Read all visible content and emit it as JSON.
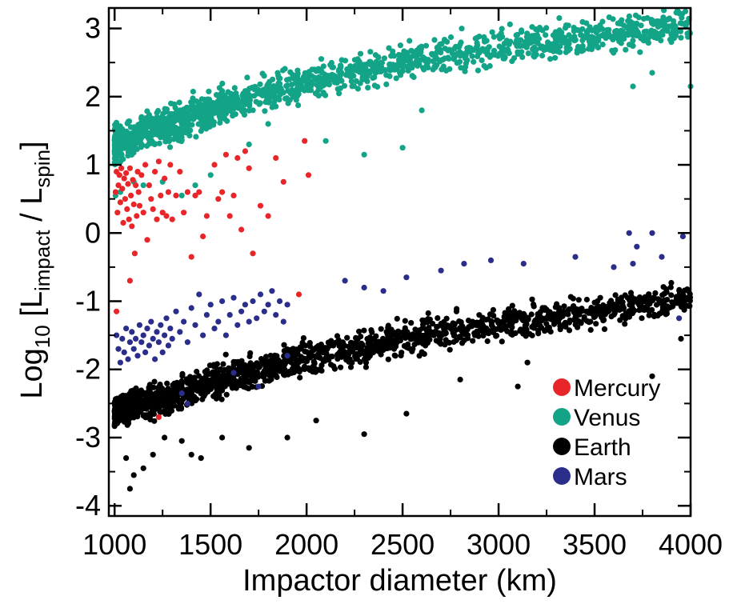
{
  "chart_data": {
    "type": "scatter",
    "xlabel": "Impactor diameter (km)",
    "ylabel": {
      "prefix": "Log",
      "prefix_sub": "10",
      "open": " [L",
      "num_sub": "impact",
      "mid": " / L",
      "den_sub": "spin",
      "close": "]"
    },
    "xlim": [
      970,
      4000
    ],
    "ylim": [
      -4.15,
      3.3
    ],
    "x_ticks": [
      1000,
      1500,
      2000,
      2500,
      3000,
      3500,
      4000
    ],
    "y_ticks": [
      -4,
      -3,
      -2,
      -1,
      0,
      1,
      2,
      3
    ],
    "x_tick_labels": [
      "1000",
      "1500",
      "2000",
      "2500",
      "3000",
      "3500",
      "4000"
    ],
    "y_tick_labels": [
      "-4",
      "-3",
      "-2",
      "-1",
      "0",
      "1",
      "2",
      "3"
    ],
    "legend_position": "lower-right",
    "series": [
      {
        "name": "Mercury",
        "color": "#e8262a",
        "trend": [
          [
            1000,
            0.75
          ],
          [
            1300,
            0.55
          ],
          [
            1700,
            0.55
          ],
          [
            2000,
            0.9
          ]
        ],
        "spread": 0.3,
        "points": [
          [
            1005,
            0.6
          ],
          [
            1010,
            0.9
          ],
          [
            1015,
            0.3
          ],
          [
            1020,
            0.7
          ],
          [
            1025,
            0.85
          ],
          [
            1030,
            0.45
          ],
          [
            1035,
            0.95
          ],
          [
            1040,
            0.65
          ],
          [
            1045,
            0.15
          ],
          [
            1050,
            0.8
          ],
          [
            1055,
            0.5
          ],
          [
            1060,
            0.88
          ],
          [
            1065,
            0.35
          ],
          [
            1070,
            0.72
          ],
          [
            1075,
            0.2
          ],
          [
            1080,
            0.95
          ],
          [
            1085,
            0.55
          ],
          [
            1090,
            0.1
          ],
          [
            1095,
            0.78
          ],
          [
            1100,
            0.42
          ],
          [
            1105,
            -0.3
          ],
          [
            1110,
            0.7
          ],
          [
            1115,
            0.25
          ],
          [
            1120,
            0.9
          ],
          [
            1125,
            0.6
          ],
          [
            1130,
            0.4
          ],
          [
            1140,
            0.85
          ],
          [
            1150,
            0.3
          ],
          [
            1160,
            1.0
          ],
          [
            1170,
            -0.1
          ],
          [
            1180,
            0.7
          ],
          [
            1190,
            0.5
          ],
          [
            1200,
            0.35
          ],
          [
            1210,
            0.9
          ],
          [
            1220,
            0.2
          ],
          [
            1230,
            1.05
          ],
          [
            1240,
            0.55
          ],
          [
            1250,
            0.3
          ],
          [
            1260,
            0.8
          ],
          [
            1270,
            0.25
          ],
          [
            1280,
            0.6
          ],
          [
            1290,
            1.0
          ],
          [
            1300,
            0.2
          ],
          [
            1320,
            0.55
          ],
          [
            1340,
            0.9
          ],
          [
            1360,
            0.3
          ],
          [
            1380,
            0.6
          ],
          [
            1400,
            -0.35
          ],
          [
            1420,
            0.55
          ],
          [
            1440,
            0.6
          ],
          [
            1460,
            -0.05
          ],
          [
            1480,
            0.25
          ],
          [
            1520,
            1.0
          ],
          [
            1540,
            0.5
          ],
          [
            1560,
            0.6
          ],
          [
            1580,
            1.15
          ],
          [
            1600,
            0.25
          ],
          [
            1620,
            0.55
          ],
          [
            1640,
            1.1
          ],
          [
            1660,
            0.05
          ],
          [
            1680,
            1.2
          ],
          [
            1700,
            0.95
          ],
          [
            1720,
            -0.3
          ],
          [
            1760,
            0.4
          ],
          [
            1800,
            0.25
          ],
          [
            1840,
            1.1
          ],
          [
            1880,
            0.75
          ],
          [
            1960,
            -0.9
          ],
          [
            1990,
            1.35
          ],
          [
            2010,
            0.85
          ],
          [
            1010,
            -1.15
          ],
          [
            1230,
            -2.7
          ],
          [
            1080,
            -0.7
          ]
        ]
      },
      {
        "name": "Venus",
        "color": "#13a488",
        "trend": [
          [
            1000,
            1.3
          ],
          [
            1300,
            1.6
          ],
          [
            1600,
            1.9
          ],
          [
            2000,
            2.2
          ],
          [
            2500,
            2.5
          ],
          [
            3000,
            2.75
          ],
          [
            3500,
            2.9
          ],
          [
            4000,
            3.05
          ]
        ],
        "spread": 0.55,
        "count": 1500,
        "extra_points": [
          [
            1005,
            0.55
          ],
          [
            1030,
            0.6
          ],
          [
            1100,
            0.75
          ],
          [
            1150,
            0.7
          ],
          [
            1250,
            0.75
          ],
          [
            1350,
            0.55
          ],
          [
            1420,
            0.7
          ],
          [
            1500,
            0.85
          ],
          [
            1700,
            1.3
          ],
          [
            1800,
            1.6
          ],
          [
            2100,
            1.35
          ],
          [
            2300,
            1.15
          ],
          [
            2500,
            1.25
          ],
          [
            2600,
            1.8
          ],
          [
            3700,
            2.15
          ],
          [
            3800,
            2.35
          ],
          [
            4000,
            2.15
          ],
          [
            3900,
            2.8
          ]
        ]
      },
      {
        "name": "Earth",
        "color": "#000000",
        "trend": [
          [
            1000,
            -2.6
          ],
          [
            1300,
            -2.4
          ],
          [
            1600,
            -2.1
          ],
          [
            2000,
            -1.85
          ],
          [
            2500,
            -1.55
          ],
          [
            3000,
            -1.35
          ],
          [
            3500,
            -1.15
          ],
          [
            4000,
            -0.95
          ]
        ],
        "spread": 0.5,
        "count": 1700,
        "extra_points": [
          [
            1060,
            -3.3
          ],
          [
            1080,
            -3.75
          ],
          [
            1100,
            -3.55
          ],
          [
            1150,
            -3.45
          ],
          [
            1200,
            -3.25
          ],
          [
            1260,
            -3.0
          ],
          [
            1350,
            -3.05
          ],
          [
            1400,
            -3.25
          ],
          [
            1450,
            -3.3
          ],
          [
            1560,
            -3.0
          ],
          [
            1700,
            -3.15
          ],
          [
            1900,
            -3.0
          ],
          [
            2050,
            -2.75
          ],
          [
            2300,
            -2.95
          ],
          [
            2520,
            -2.65
          ],
          [
            2800,
            -2.15
          ],
          [
            3100,
            -2.25
          ],
          [
            3150,
            -1.9
          ],
          [
            3800,
            -2.1
          ],
          [
            3950,
            -1.55
          ]
        ]
      },
      {
        "name": "Mars",
        "color": "#2a2e8a",
        "trend": [
          [
            1000,
            -1.6
          ],
          [
            1400,
            -1.35
          ],
          [
            2000,
            -1.05
          ],
          [
            3000,
            -0.6
          ],
          [
            4000,
            -0.2
          ]
        ],
        "spread": 0.3,
        "points": [
          [
            1010,
            -1.5
          ],
          [
            1020,
            -1.7
          ],
          [
            1030,
            -1.9
          ],
          [
            1040,
            -1.55
          ],
          [
            1050,
            -1.75
          ],
          [
            1060,
            -1.4
          ],
          [
            1070,
            -1.85
          ],
          [
            1080,
            -1.6
          ],
          [
            1090,
            -1.45
          ],
          [
            1100,
            -1.7
          ],
          [
            1110,
            -1.55
          ],
          [
            1120,
            -1.8
          ],
          [
            1130,
            -1.35
          ],
          [
            1140,
            -1.6
          ],
          [
            1150,
            -1.5
          ],
          [
            1160,
            -1.75
          ],
          [
            1170,
            -1.4
          ],
          [
            1180,
            -1.65
          ],
          [
            1190,
            -1.3
          ],
          [
            1200,
            -1.55
          ],
          [
            1210,
            -1.85
          ],
          [
            1220,
            -1.45
          ],
          [
            1230,
            -1.6
          ],
          [
            1240,
            -1.35
          ],
          [
            1250,
            -1.75
          ],
          [
            1260,
            -1.5
          ],
          [
            1270,
            -1.25
          ],
          [
            1280,
            -1.65
          ],
          [
            1290,
            -1.4
          ],
          [
            1300,
            -1.55
          ],
          [
            1320,
            -1.15
          ],
          [
            1340,
            -1.45
          ],
          [
            1360,
            -1.3
          ],
          [
            1380,
            -1.6
          ],
          [
            1400,
            -1.1
          ],
          [
            1420,
            -1.35
          ],
          [
            1440,
            -0.9
          ],
          [
            1460,
            -1.5
          ],
          [
            1480,
            -1.2
          ],
          [
            1500,
            -1.05
          ],
          [
            1520,
            -1.4
          ],
          [
            1540,
            -1.3
          ],
          [
            1560,
            -1.0
          ],
          [
            1580,
            -1.5
          ],
          [
            1600,
            -1.2
          ],
          [
            1620,
            -0.95
          ],
          [
            1640,
            -1.35
          ],
          [
            1660,
            -1.15
          ],
          [
            1680,
            -1.05
          ],
          [
            1700,
            -1.3
          ],
          [
            1720,
            -1.0
          ],
          [
            1740,
            -1.25
          ],
          [
            1760,
            -0.9
          ],
          [
            1780,
            -1.15
          ],
          [
            1800,
            -1.05
          ],
          [
            1820,
            -0.85
          ],
          [
            1840,
            -1.2
          ],
          [
            1860,
            -1.0
          ],
          [
            1880,
            -1.3
          ],
          [
            1900,
            -1.05
          ],
          [
            2200,
            -0.7
          ],
          [
            2300,
            -0.8
          ],
          [
            2400,
            -0.85
          ],
          [
            2520,
            -0.65
          ],
          [
            2700,
            -0.55
          ],
          [
            2820,
            -0.45
          ],
          [
            2960,
            -0.4
          ],
          [
            3130,
            -0.45
          ],
          [
            3400,
            -0.35
          ],
          [
            3600,
            -0.5
          ],
          [
            3680,
            0.0
          ],
          [
            3700,
            -0.45
          ],
          [
            3720,
            -0.2
          ],
          [
            3800,
            0.0
          ],
          [
            3850,
            -0.35
          ],
          [
            3960,
            -0.05
          ],
          [
            3940,
            -1.25
          ],
          [
            1350,
            -2.35
          ],
          [
            1620,
            -2.05
          ],
          [
            1900,
            -1.8
          ],
          [
            1380,
            -2.5
          ],
          [
            1750,
            -2.25
          ]
        ]
      }
    ]
  }
}
